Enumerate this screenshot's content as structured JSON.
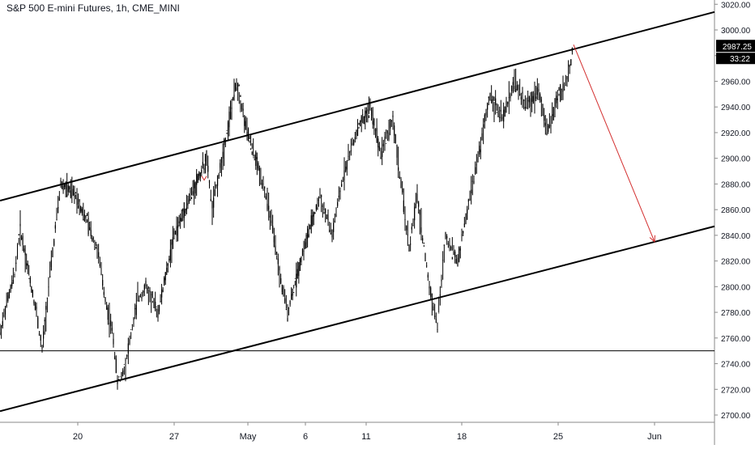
{
  "chart_data": {
    "type": "candlestick",
    "title": "S&P 500 E-mini Futures, 1h, CME_MINI",
    "ylim": [
      2690,
      3022
    ],
    "y_ticks": [
      2700,
      2720,
      2740,
      2760,
      2780,
      2800,
      2820,
      2840,
      2860,
      2880,
      2900,
      2920,
      2940,
      2960,
      2980,
      3000,
      3020
    ],
    "y_tick_labels": [
      "2700.00",
      "2720.00",
      "2740.00",
      "2760.00",
      "2780.00",
      "2800.00",
      "2820.00",
      "2840.00",
      "2860.00",
      "2880.00",
      "2900.00",
      "2920.00",
      "2940.00",
      "2960.00",
      "2980.00",
      "3000.00",
      "3020.00"
    ],
    "x_tick_labels": [
      "20",
      "27",
      "May",
      "6",
      "11",
      "18",
      "25",
      "Jun"
    ],
    "price_path": [
      [
        "Apr 13",
        2765
      ],
      [
        "Apr 14",
        2810
      ],
      [
        "Apr 15",
        2845
      ],
      [
        "Apr 16",
        2780
      ],
      [
        "Apr 17",
        2750
      ],
      [
        "Apr 17b",
        2800
      ],
      [
        "Apr 19",
        2880
      ],
      [
        "Apr 20",
        2870
      ],
      [
        "Apr 21",
        2830
      ],
      [
        "Apr 22",
        2790
      ],
      [
        "Apr 23",
        2760
      ],
      [
        "Apr 24",
        2725
      ],
      [
        "Apr 24b",
        2740
      ],
      [
        "Apr 25",
        2790
      ],
      [
        "Apr 26",
        2800
      ],
      [
        "Apr 27",
        2780
      ],
      [
        "Apr 28",
        2840
      ],
      [
        "Apr 29",
        2870
      ],
      [
        "Apr 30",
        2900
      ],
      [
        "Apr 30b",
        2860
      ],
      [
        "May 1",
        2920
      ],
      [
        "May 1b",
        2960
      ],
      [
        "May 2",
        2920
      ],
      [
        "May 3",
        2880
      ],
      [
        "May 4",
        2850
      ],
      [
        "May 5",
        2810
      ],
      [
        "May 6",
        2780
      ],
      [
        "May 7",
        2830
      ],
      [
        "May 8",
        2870
      ],
      [
        "May 9",
        2840
      ],
      [
        "May 10",
        2890
      ],
      [
        "May 11",
        2920
      ],
      [
        "May 12",
        2940
      ],
      [
        "May 13",
        2905
      ],
      [
        "May 14",
        2930
      ],
      [
        "May 15",
        2880
      ],
      [
        "May 16",
        2830
      ],
      [
        "May 17",
        2870
      ],
      [
        "May 18",
        2800
      ],
      [
        "May 19",
        2770
      ],
      [
        "May 19b",
        2840
      ],
      [
        "May 20",
        2820
      ],
      [
        "May 21",
        2870
      ],
      [
        "May 22",
        2900
      ],
      [
        "May 23",
        2950
      ],
      [
        "May 24",
        2930
      ],
      [
        "May 25",
        2960
      ],
      [
        "May 26",
        2940
      ],
      [
        "May 27",
        2955
      ],
      [
        "May 28",
        2920
      ],
      [
        "May 29",
        2950
      ],
      [
        "May 30",
        2960
      ],
      [
        "May 31",
        2987.25
      ]
    ],
    "channel": {
      "upper": [
        [
          "Apr 13",
          2867
        ],
        [
          "Jun",
          3014
        ]
      ],
      "lower": [
        [
          "Apr 13",
          2703
        ],
        [
          "Jun",
          2847
        ]
      ]
    },
    "horizontal_line": 2750,
    "projection": {
      "from": 2987.25,
      "to": 2835
    },
    "last_price_label": "2987.25",
    "countdown_label": "33:22",
    "colors": {
      "candles": "#000000",
      "channel": "#000000",
      "projection": "#d32f2f",
      "axis_text": "#131722",
      "price_tag_bg": "#000000",
      "price_tag_text": "#ffffff"
    }
  }
}
